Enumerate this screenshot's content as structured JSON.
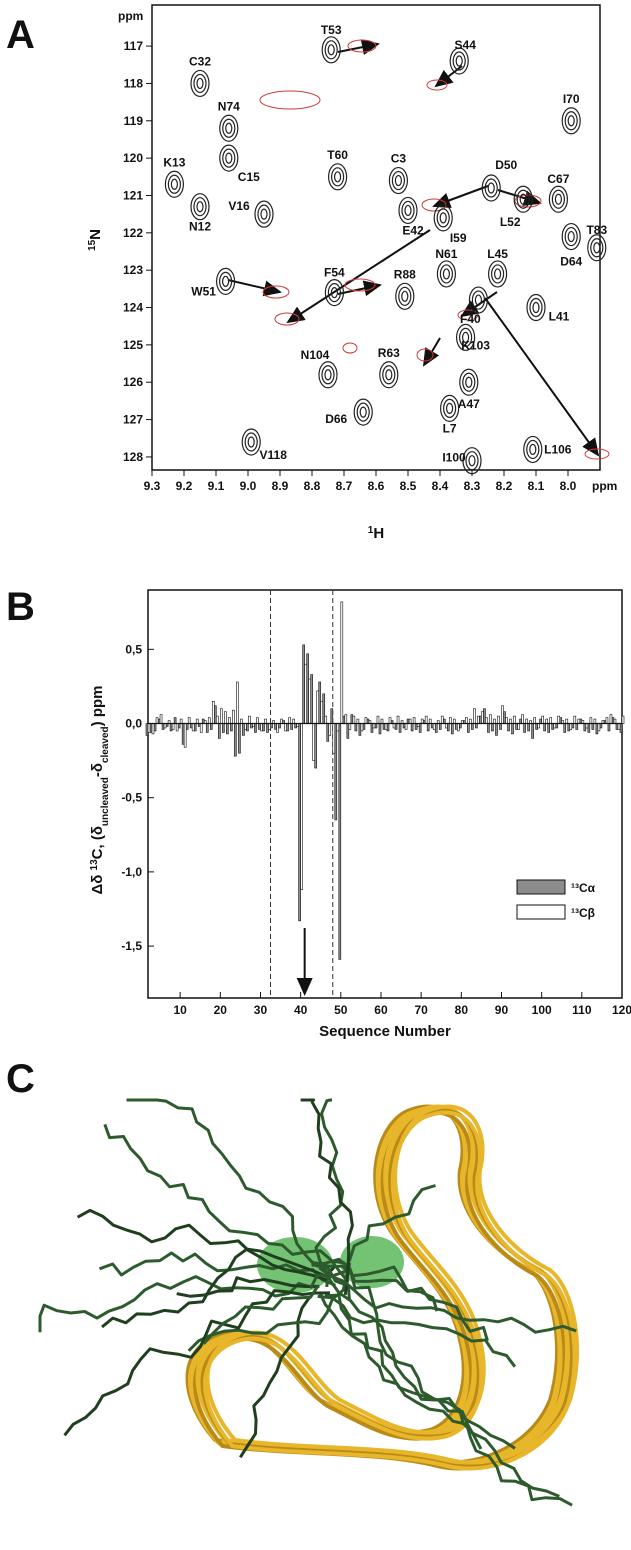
{
  "panels": [
    "A",
    "B",
    "C"
  ],
  "chart_data": [
    {
      "type": "scatter",
      "x_label_parts": [
        "1",
        "H"
      ],
      "y_label_parts": [
        "15",
        "N"
      ],
      "x_unit": "ppm",
      "y_unit": "ppm",
      "xlim": [
        9.3,
        7.9
      ],
      "ylim": [
        128.35,
        115.9
      ],
      "xticks": [
        9.3,
        9.2,
        9.1,
        {
          "value": 9,
          "label": "9.0"
        },
        8.9,
        8.8,
        8.7,
        8.6,
        8.5,
        8.4,
        8.3,
        8.2,
        8.1,
        {
          "value": 8,
          "label": "8.0"
        }
      ],
      "yticks": [
        117,
        118,
        119,
        120,
        121,
        122,
        123,
        124,
        125,
        126,
        127,
        128
      ],
      "color": "#222222",
      "labels": [
        "T53",
        "S44",
        "C32",
        "N74",
        "I70",
        "K13",
        "C15",
        "V16",
        "N12",
        "T60",
        "C3",
        "D50",
        "C67",
        "L52",
        "I59",
        "E42",
        "T83",
        "D64",
        "W51",
        "F54",
        "R88",
        "N61",
        "L45",
        "F40",
        "L41",
        "K103",
        "N104",
        "R63",
        "A47",
        "L7",
        "D66",
        "V118",
        "I100",
        "L106"
      ],
      "x": [
        8.74,
        8.34,
        9.15,
        9.06,
        7.99,
        9.23,
        9.06,
        8.95,
        9.15,
        8.72,
        8.53,
        8.24,
        8.03,
        8.14,
        8.39,
        8.5,
        7.91,
        7.99,
        9.07,
        8.73,
        8.51,
        8.38,
        8.22,
        8.28,
        8.1,
        8.32,
        8.75,
        8.56,
        8.31,
        8.37,
        8.64,
        8.99,
        8.3,
        8.11
      ],
      "y": [
        117.1,
        117.4,
        118.0,
        119.2,
        119.0,
        120.7,
        120.0,
        121.5,
        121.3,
        120.5,
        120.6,
        120.8,
        121.1,
        121.1,
        121.6,
        121.4,
        122.4,
        122.1,
        123.3,
        123.6,
        123.7,
        123.1,
        123.1,
        123.8,
        124.0,
        124.8,
        125.8,
        125.8,
        126.0,
        126.7,
        126.8,
        127.6,
        128.1,
        127.8
      ]
    },
    {
      "type": "bar",
      "x_label": "Sequence Number",
      "y_label_parts": [
        "Δδ ",
        "13",
        "C, (δ",
        "uncleaved",
        "-δ",
        "cleaved",
        ") ppm"
      ],
      "xlim": [
        2,
        120
      ],
      "ylim": [
        -1.85,
        0.9
      ],
      "xticks": [
        10,
        20,
        30,
        40,
        50,
        60,
        70,
        80,
        90,
        100,
        110,
        120
      ],
      "yticks": [
        {
          "value": 0.5,
          "label": "0,5"
        },
        {
          "value": 0,
          "label": "0,0"
        },
        {
          "value": -0.5,
          "label": "-0,5"
        },
        {
          "value": -1,
          "label": "-1,0"
        },
        {
          "value": -1.5,
          "label": "-1,5"
        }
      ],
      "annotation_lines": [
        32.5,
        48
      ],
      "arrow_x": 41,
      "x": [
        2,
        3,
        4,
        5,
        6,
        7,
        8,
        9,
        10,
        11,
        12,
        13,
        14,
        15,
        16,
        17,
        18,
        19,
        20,
        21,
        22,
        23,
        24,
        25,
        26,
        27,
        28,
        29,
        30,
        31,
        32,
        33,
        34,
        35,
        36,
        37,
        38,
        39,
        40,
        41,
        42,
        43,
        44,
        45,
        46,
        47,
        48,
        49,
        50,
        51,
        52,
        53,
        54,
        55,
        56,
        57,
        58,
        59,
        60,
        61,
        62,
        63,
        64,
        65,
        66,
        67,
        68,
        69,
        70,
        71,
        72,
        73,
        74,
        75,
        76,
        77,
        78,
        79,
        80,
        81,
        82,
        83,
        84,
        85,
        86,
        87,
        88,
        89,
        90,
        91,
        92,
        93,
        94,
        95,
        96,
        97,
        98,
        99,
        100,
        101,
        102,
        103,
        104,
        105,
        106,
        107,
        108,
        109,
        110,
        111,
        112,
        113,
        114,
        115,
        116,
        117,
        118,
        119,
        120
      ],
      "series": [
        {
          "name": "¹³Cα",
          "color": "#8c8c8c",
          "values": [
            -0.08,
            -0.06,
            -0.05,
            0.03,
            -0.04,
            -0.02,
            -0.05,
            0.04,
            -0.03,
            -0.14,
            -0.04,
            -0.03,
            -0.05,
            -0.02,
            0.03,
            -0.06,
            -0.04,
            0.12,
            -0.1,
            -0.06,
            -0.07,
            -0.05,
            -0.22,
            -0.2,
            -0.08,
            -0.05,
            -0.03,
            -0.06,
            -0.04,
            -0.05,
            -0.06,
            -0.03,
            -0.04,
            -0.03,
            0.02,
            -0.05,
            -0.04,
            -0.03,
            -1.33,
            0.53,
            0.47,
            0.33,
            -0.3,
            0.28,
            0.2,
            -0.12,
            0.1,
            -0.65,
            -1.59,
            0.05,
            -0.1,
            0.06,
            -0.05,
            -0.08,
            -0.04,
            0.03,
            -0.06,
            -0.03,
            -0.07,
            -0.04,
            -0.05,
            0.02,
            -0.04,
            -0.06,
            -0.03,
            0.03,
            -0.05,
            -0.04,
            -0.06,
            0.02,
            -0.05,
            -0.03,
            -0.06,
            -0.04,
            0.03,
            -0.05,
            -0.07,
            -0.04,
            -0.03,
            0.02,
            -0.06,
            -0.04,
            -0.03,
            0.05,
            0.1,
            -0.06,
            -0.05,
            -0.08,
            -0.04,
            0.08,
            -0.05,
            -0.07,
            -0.04,
            0.03,
            -0.06,
            -0.05,
            -0.1,
            -0.04,
            0.03,
            -0.05,
            -0.06,
            -0.04,
            -0.03,
            0.04,
            -0.06,
            -0.05,
            -0.03,
            -0.04,
            0.03,
            -0.05,
            -0.06,
            -0.04,
            -0.07,
            -0.03,
            0.02,
            -0.05,
            0.04,
            -0.04,
            -0.06
          ]
        },
        {
          "name": "¹³Cβ",
          "color": "#ffffff",
          "values": [
            -0.06,
            -0.07,
            0.04,
            0.06,
            -0.03,
            0.02,
            -0.04,
            -0.05,
            0.03,
            -0.16,
            0.04,
            -0.05,
            0.03,
            -0.06,
            0.02,
            0.04,
            0.15,
            0.05,
            0.1,
            0.08,
            0.04,
            0.09,
            0.28,
            0.03,
            -0.04,
            0.05,
            -0.02,
            0.04,
            -0.05,
            0.03,
            -0.04,
            0.02,
            -0.06,
            0.03,
            -0.05,
            0.04,
            0.03,
            -0.02,
            -1.12,
            0.4,
            0.3,
            -0.25,
            0.22,
            0.15,
            0.05,
            -0.08,
            -0.2,
            -0.05,
            0.82,
            0.06,
            -0.04,
            0.05,
            0.03,
            -0.05,
            0.04,
            0.02,
            -0.03,
            0.05,
            0.03,
            -0.04,
            0.04,
            -0.03,
            0.05,
            0.02,
            -0.04,
            0.03,
            0.04,
            -0.02,
            0.03,
            0.05,
            0.03,
            -0.04,
            0.02,
            0.05,
            -0.03,
            0.04,
            0.03,
            -0.05,
            0.02,
            0.04,
            0.03,
            0.1,
            0.05,
            0.08,
            0.04,
            0.06,
            0.03,
            0.05,
            0.12,
            0.04,
            0.03,
            0.05,
            -0.04,
            0.06,
            0.03,
            0.02,
            0.04,
            -0.03,
            0.05,
            0.03,
            0.04,
            -0.03,
            0.05,
            0.02,
            0.03,
            -0.04,
            0.05,
            0.03,
            0.02,
            -0.03,
            0.04,
            0.03,
            -0.05,
            0.02,
            0.04,
            0.06,
            0.03,
            -0.04,
            0.05
          ]
        }
      ],
      "legend": "lower right"
    }
  ]
}
